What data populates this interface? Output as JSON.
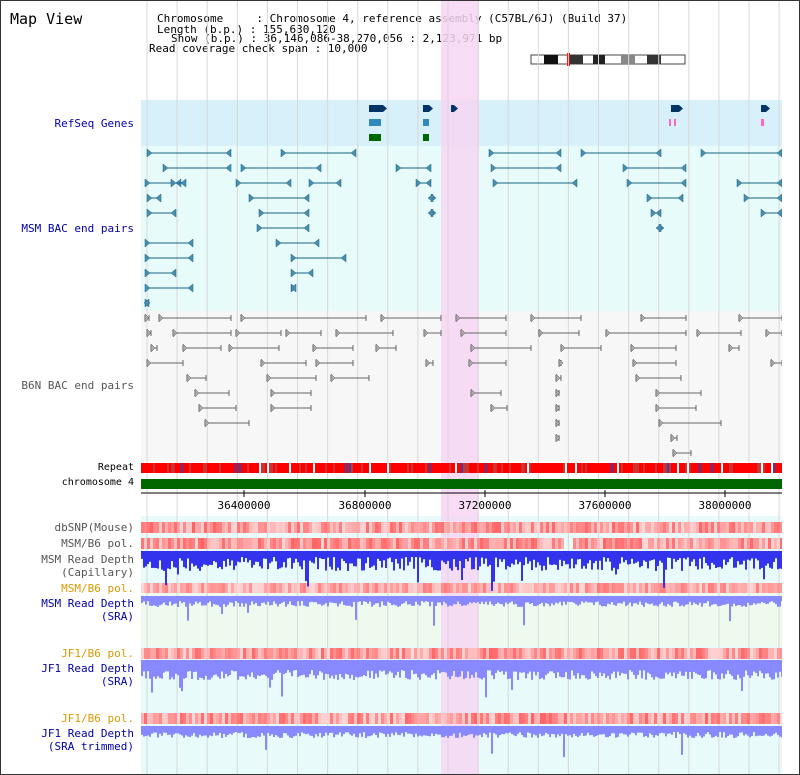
{
  "page": {
    "title": "Map View"
  },
  "header": {
    "chromosome_line": "Chromosome     : Chromosome 4, reference assembly (C57BL/6J) (Build 37)",
    "length_line": "Length (b.p.) : 155,630,120",
    "show_line": "Show (b.p.) : 36,146,086-38,270,056 : 2,123,971 bp",
    "coverage_line": "Read coverage check span : 10,000"
  },
  "tracks": {
    "refseq": "RefSeq Genes",
    "msm_bac": "MSM BAC end pairs",
    "b6n_bac": "B6N BAC end pairs",
    "repeat": "Repeat",
    "chromosome": "chromosome 4",
    "dbsnp": "dbSNP(Mouse)",
    "msm_b6_pol": "MSM/B6 pol.",
    "msm_read_cap_1": "MSM Read Depth",
    "msm_read_cap_2": "(Capillary)",
    "msm_b6_pol2": "MSM/B6 pol.",
    "msm_read_sra_1": "MSM Read Depth",
    "msm_read_sra_2": "(SRA)",
    "jf1_pol": "JF1/B6 pol.",
    "jf1_read_1": "JF1 Read Depth",
    "jf1_read_2": "(SRA)",
    "jf1_pol2": "JF1/B6 pol.",
    "jf1_trim_1": "JF1 Read Depth",
    "jf1_trim_2": "(SRA trimmed)"
  },
  "axis": {
    "ticks": [
      "36400000",
      "36800000",
      "37200000",
      "37600000",
      "38000000"
    ]
  },
  "colors": {
    "refseq_bg": "#d8f0fa",
    "bac_bg": "#e6fbfa",
    "highlight": "#f7d6f3",
    "chromosome_bar": "#006600",
    "repeat": "#ff0000",
    "snp": "#f08080",
    "depth_cap": "#3333ee",
    "depth_sra": "#8888ff",
    "gene_dark": "#003366",
    "gene_mid": "#3388bb",
    "gene_green": "#006600",
    "bac_msm": "#1a6080",
    "bac_b6n": "#666666"
  }
}
